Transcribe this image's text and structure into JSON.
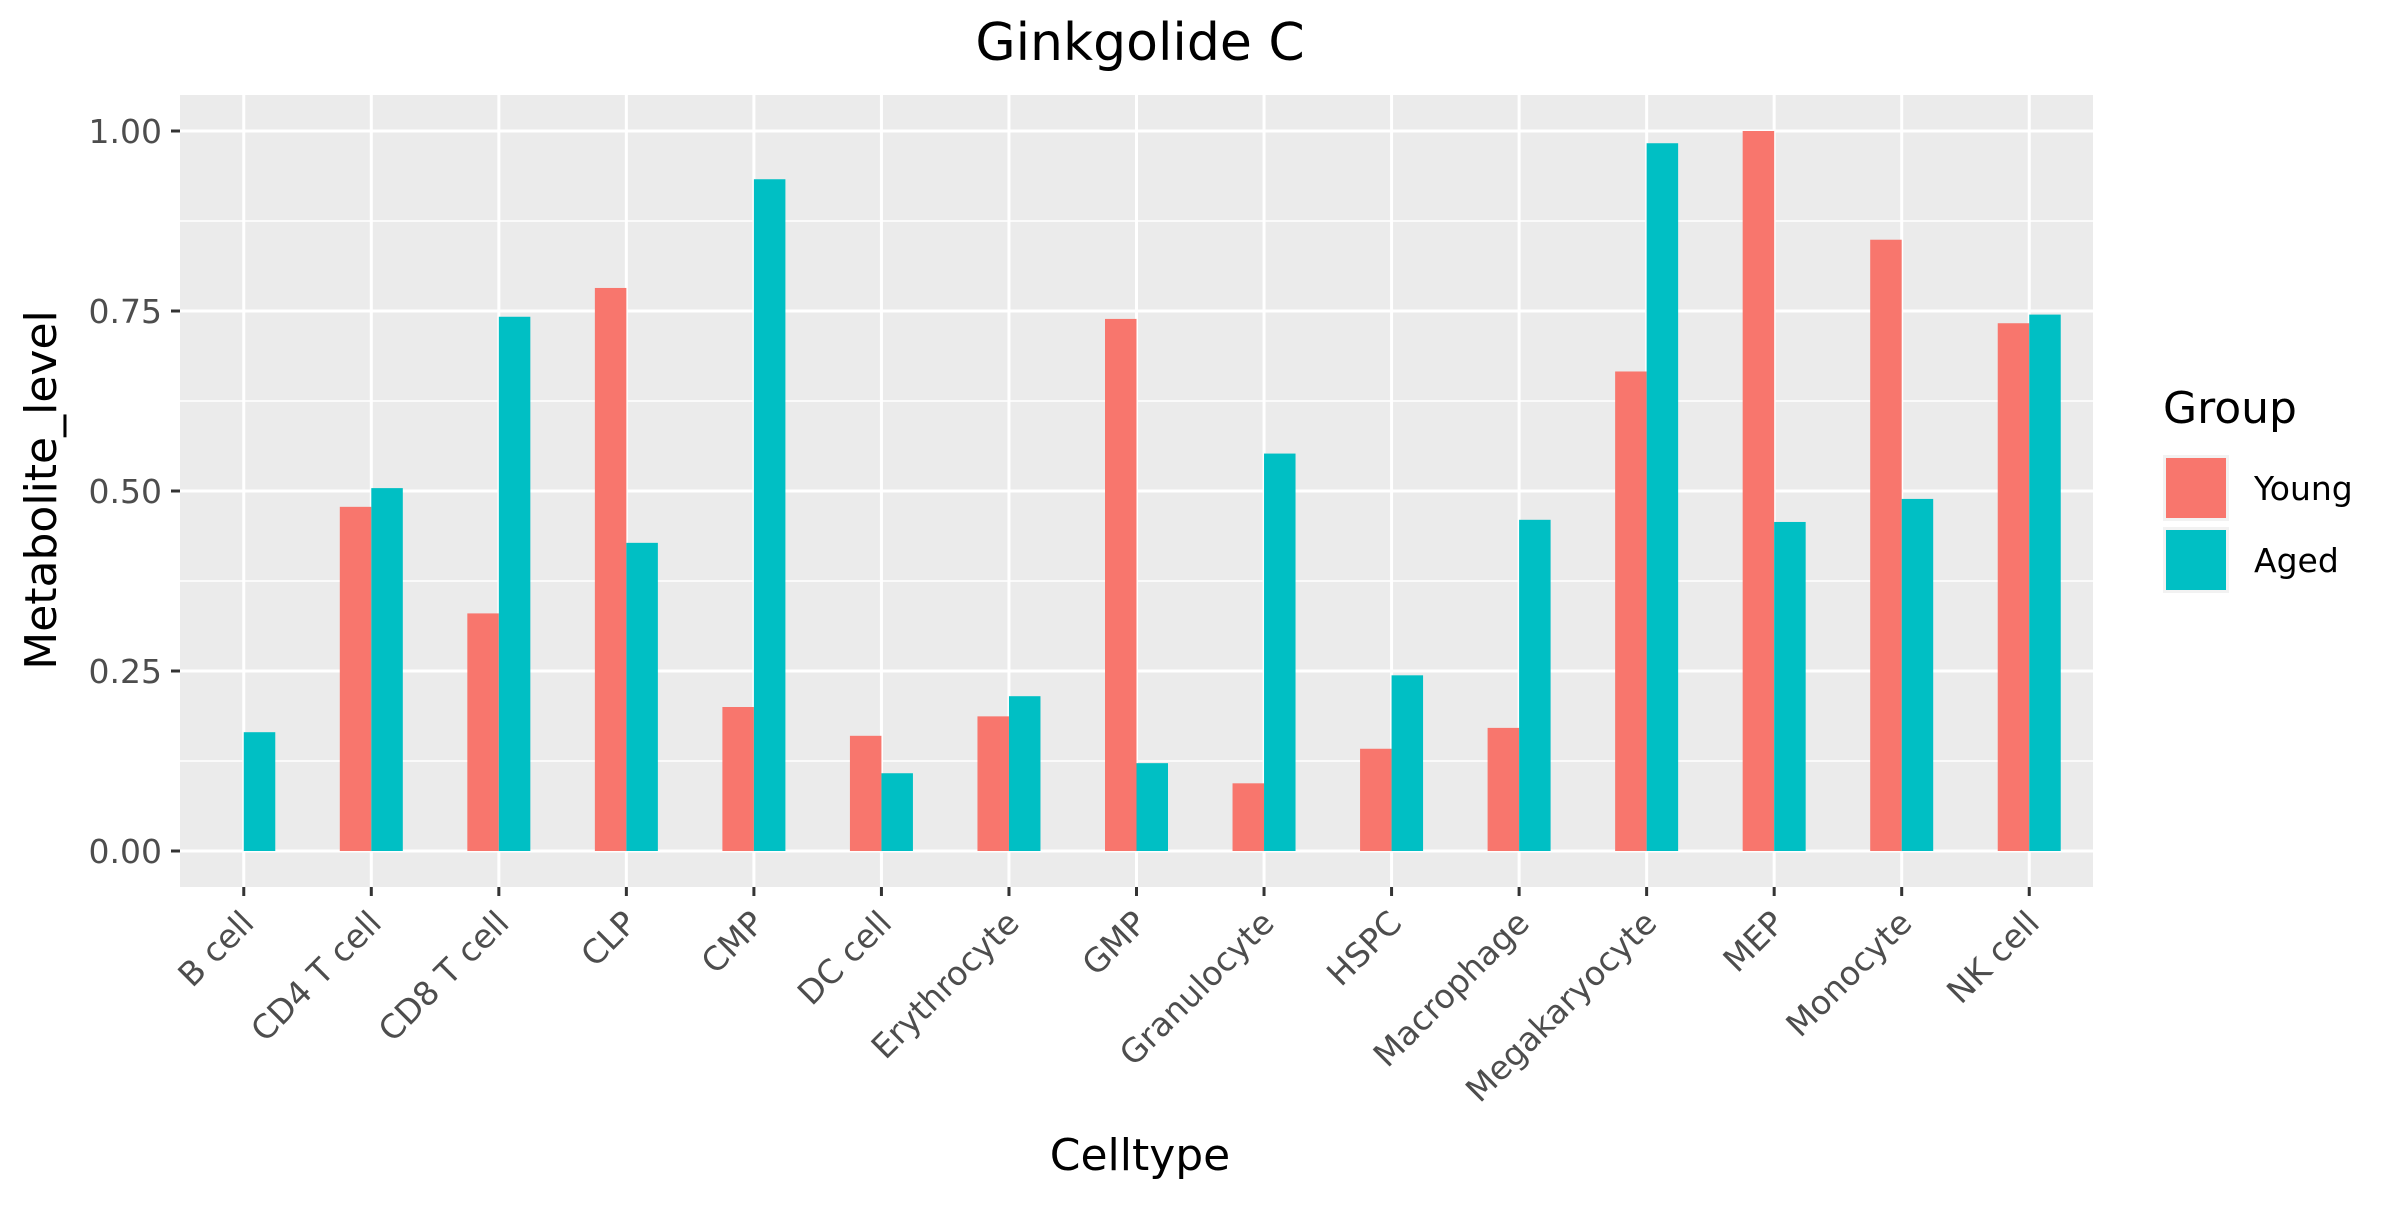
{
  "chart_data": {
    "type": "bar",
    "title": "Ginkgolide C",
    "xlabel": "Celltype",
    "ylabel": "Metabolite_level",
    "categories": [
      "B cell",
      "CD4 T cell",
      "CD8 T cell",
      "CLP",
      "CMP",
      "DC cell",
      "Erythrocyte",
      "GMP",
      "Granulocyte",
      "HSPC",
      "Macrophage",
      "Megakaryocyte",
      "MEP",
      "Monocyte",
      "NK cell"
    ],
    "series": [
      {
        "name": "Young",
        "color": "#F8766D",
        "values": [
          0.0,
          0.478,
          0.33,
          0.782,
          0.2,
          0.16,
          0.187,
          0.739,
          0.094,
          0.142,
          0.171,
          0.666,
          1.0,
          0.849,
          0.733
        ]
      },
      {
        "name": "Aged",
        "color": "#00BFC4",
        "values": [
          0.165,
          0.504,
          0.742,
          0.428,
          0.933,
          0.108,
          0.215,
          0.122,
          0.552,
          0.244,
          0.46,
          0.983,
          0.457,
          0.489,
          0.745
        ]
      }
    ],
    "ylim": [
      -0.05,
      1.05
    ],
    "yticks": [
      0.0,
      0.25,
      0.5,
      0.75,
      1.0
    ],
    "ytick_labels": [
      "0.00",
      "0.25",
      "0.50",
      "0.75",
      "1.00"
    ],
    "grid": true,
    "legend": {
      "title": "Group",
      "position": "right"
    },
    "panel_background": "#EBEBEB"
  }
}
